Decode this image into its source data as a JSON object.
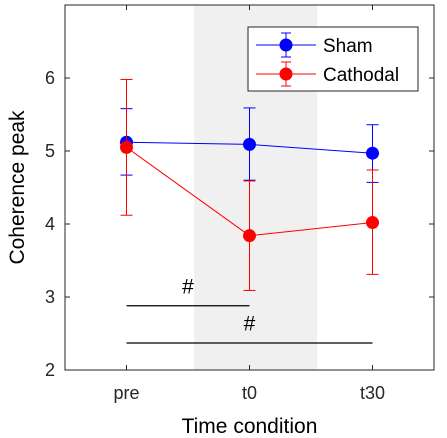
{
  "chart_data": {
    "type": "line",
    "categories": [
      "pre",
      "t0",
      "t30"
    ],
    "xlabel": "Time condition",
    "ylabel": "Coherence peak",
    "ylim": [
      2,
      7
    ],
    "yticks": [
      2,
      3,
      4,
      5,
      6
    ],
    "grid": false,
    "legend_position": "top-right",
    "shaded_region": {
      "from_x": 1.55,
      "to_x": 2.55,
      "color": "#f0f0f0"
    },
    "series": [
      {
        "name": "Sham",
        "color": "#0000ff",
        "values": [
          5.12,
          5.09,
          4.97
        ],
        "error_low": [
          4.67,
          4.6,
          4.57
        ],
        "error_high": [
          5.58,
          5.59,
          5.36
        ]
      },
      {
        "name": "Cathodal",
        "color": "#ff0000",
        "values": [
          5.05,
          3.84,
          4.02
        ],
        "error_low": [
          4.12,
          3.09,
          3.31
        ],
        "error_high": [
          5.98,
          4.59,
          4.74
        ]
      }
    ],
    "annotations": [
      {
        "label": "#",
        "from_x": 1,
        "to_x": 2,
        "y": 2.88,
        "label_y": 3.05
      },
      {
        "label": "#",
        "from_x": 1,
        "to_x": 3,
        "y": 2.37,
        "label_y": 2.54
      }
    ]
  }
}
